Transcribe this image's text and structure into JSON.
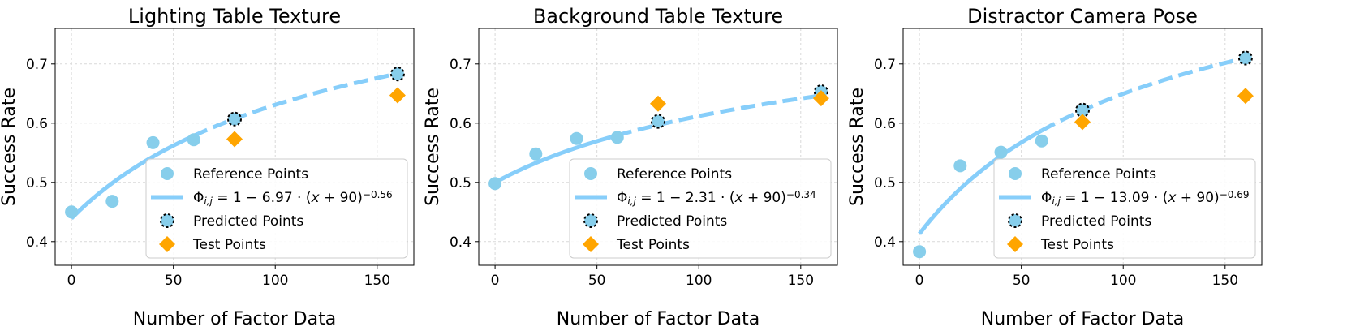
{
  "chart_data": [
    {
      "type": "scatter",
      "title": "Lighting Table Texture",
      "xlabel": "Number of Factor Data",
      "ylabel": "Success Rate",
      "xlim": [
        -8,
        168
      ],
      "ylim": [
        0.36,
        0.76
      ],
      "xticks": [
        0,
        50,
        100,
        150
      ],
      "yticks": [
        0.4,
        0.5,
        0.6,
        0.7
      ],
      "fit": {
        "a": 6.97,
        "b": 0.56,
        "offset": 90
      },
      "solid_range": [
        0,
        60
      ],
      "dashed_range": [
        60,
        160
      ],
      "reference_points": {
        "x": [
          0,
          20,
          40,
          60
        ],
        "y": [
          0.45,
          0.468,
          0.567,
          0.572
        ]
      },
      "predicted_points": {
        "x": [
          80,
          160
        ],
        "y": [
          0.607,
          0.683
        ]
      },
      "test_points": {
        "x": [
          80,
          160
        ],
        "y": [
          0.573,
          0.647
        ]
      },
      "legend": [
        "Reference Points",
        "Φi,j = 1 − 6.97 · (x + 90)−0.56",
        "Predicted Points",
        "Test Points"
      ],
      "legend_parts": {
        "coef": "6.97",
        "exp": "−0.56"
      },
      "legend_position": "lower-right",
      "grid": true
    },
    {
      "type": "scatter",
      "title": "Background Table Texture",
      "xlabel": "Number of Factor Data",
      "ylabel": "Success Rate",
      "xlim": [
        -8,
        168
      ],
      "ylim": [
        0.36,
        0.76
      ],
      "xticks": [
        0,
        50,
        100,
        150
      ],
      "yticks": [
        0.4,
        0.5,
        0.6,
        0.7
      ],
      "fit": {
        "a": 2.31,
        "b": 0.34,
        "offset": 90
      },
      "solid_range": [
        0,
        60
      ],
      "dashed_range": [
        60,
        160
      ],
      "reference_points": {
        "x": [
          0,
          20,
          40,
          60
        ],
        "y": [
          0.498,
          0.548,
          0.574,
          0.576
        ]
      },
      "predicted_points": {
        "x": [
          80,
          160
        ],
        "y": [
          0.603,
          0.653
        ]
      },
      "test_points": {
        "x": [
          80,
          160
        ],
        "y": [
          0.633,
          0.642
        ]
      },
      "legend": [
        "Reference Points",
        "Φi,j = 1 − 2.31 · (x + 90)−0.34",
        "Predicted Points",
        "Test Points"
      ],
      "legend_parts": {
        "coef": "2.31",
        "exp": "−0.34"
      },
      "legend_position": "lower-right",
      "grid": true
    },
    {
      "type": "scatter",
      "title": "Distractor Camera Pose",
      "xlabel": "Number of Factor Data",
      "ylabel": "Success Rate",
      "xlim": [
        -8,
        168
      ],
      "ylim": [
        0.36,
        0.76
      ],
      "xticks": [
        0,
        50,
        100,
        150
      ],
      "yticks": [
        0.4,
        0.5,
        0.6,
        0.7
      ],
      "fit": {
        "a": 13.09,
        "b": 0.69,
        "offset": 90
      },
      "solid_range": [
        0,
        60
      ],
      "dashed_range": [
        60,
        160
      ],
      "reference_points": {
        "x": [
          0,
          20,
          40,
          60
        ],
        "y": [
          0.383,
          0.528,
          0.551,
          0.57
        ]
      },
      "predicted_points": {
        "x": [
          80,
          160
        ],
        "y": [
          0.622,
          0.71
        ]
      },
      "test_points": {
        "x": [
          80,
          160
        ],
        "y": [
          0.602,
          0.646
        ]
      },
      "legend": [
        "Reference Points",
        "Φi,j = 1 − 13.09 · (x + 90)−0.69",
        "Predicted Points",
        "Test Points"
      ],
      "legend_parts": {
        "coef": "13.09",
        "exp": "−0.69"
      },
      "legend_position": "lower-right",
      "grid": true
    }
  ],
  "colors": {
    "reference": "#87ceeb",
    "fit_line": "#87cefa",
    "test": "#ffa500",
    "predicted_edge": "#000000",
    "grid": "#d9d9d9"
  }
}
